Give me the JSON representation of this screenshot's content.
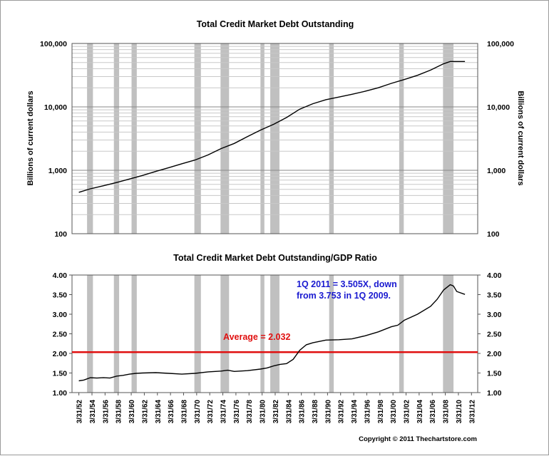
{
  "copyright": "Copyright © 2011 Thechartstore.com",
  "chart_data": [
    {
      "type": "line",
      "title": "Total Credit Market Debt Outstanding",
      "ylabel_left": "Billions of current dollars",
      "ylabel_right": "Billions of current dollars",
      "yscale": "log",
      "ylim": [
        100,
        100000
      ],
      "yticks": [
        {
          "value": 100,
          "label": "100"
        },
        {
          "value": 1000,
          "label": "1,000"
        },
        {
          "value": 10000,
          "label": "10,000"
        },
        {
          "value": 100000,
          "label": "100,000"
        }
      ],
      "grid": true,
      "line_color": "#000000",
      "recession_color": "#c0c0c0",
      "series": [
        {
          "x": [
            1952.25,
            1954,
            1956,
            1958,
            1960,
            1962,
            1964,
            1966,
            1968,
            1970,
            1972,
            1974,
            1976,
            1978,
            1980,
            1982,
            1984,
            1986,
            1988,
            1990,
            1992,
            1994,
            1996,
            1998,
            2000,
            2002,
            2004,
            2006,
            2008,
            2009,
            2010,
            2011.25
          ],
          "values": [
            450,
            510,
            570,
            640,
            730,
            830,
            960,
            1100,
            1270,
            1450,
            1750,
            2200,
            2650,
            3400,
            4300,
            5300,
            6800,
            9200,
            11200,
            13000,
            14300,
            15800,
            17600,
            20000,
            23500,
            27000,
            31500,
            38000,
            48000,
            52000,
            52000,
            52000
          ]
        }
      ]
    },
    {
      "type": "line",
      "title": "Total Credit Market Debt Outstanding/GDP Ratio",
      "ylim": [
        1.0,
        4.0
      ],
      "yticks": [
        {
          "value": 1.0,
          "label": "1.00"
        },
        {
          "value": 1.5,
          "label": "1.50"
        },
        {
          "value": 2.0,
          "label": "2.00"
        },
        {
          "value": 2.5,
          "label": "2.50"
        },
        {
          "value": 3.0,
          "label": "3.00"
        },
        {
          "value": 3.5,
          "label": "3.50"
        },
        {
          "value": 4.0,
          "label": "4.00"
        }
      ],
      "grid": false,
      "line_color": "#000000",
      "average": {
        "value": 2.032,
        "label": "Average = 2.032",
        "color": "#e01010"
      },
      "annotation": {
        "lines": [
          "1Q 2011 = 3.505X, down",
          "from 3.753 in 1Q 2009."
        ],
        "color": "#1a1ad0"
      },
      "series": [
        {
          "x": [
            1952.25,
            1953,
            1954,
            1955,
            1956,
            1957,
            1958,
            1959,
            1960,
            1961,
            1962,
            1964,
            1966,
            1968,
            1970,
            1972,
            1974,
            1975,
            1976,
            1978,
            1980,
            1981,
            1982,
            1983,
            1984,
            1985,
            1986,
            1987,
            1988,
            1990,
            1992,
            1994,
            1996,
            1998,
            2000,
            2001,
            2002,
            2004,
            2006,
            2007,
            2008,
            2009,
            2009.5,
            2010,
            2011.25
          ],
          "values": [
            1.3,
            1.32,
            1.38,
            1.37,
            1.38,
            1.37,
            1.42,
            1.44,
            1.47,
            1.49,
            1.5,
            1.51,
            1.49,
            1.47,
            1.49,
            1.53,
            1.55,
            1.57,
            1.54,
            1.56,
            1.6,
            1.63,
            1.68,
            1.72,
            1.74,
            1.85,
            2.08,
            2.22,
            2.27,
            2.34,
            2.35,
            2.37,
            2.45,
            2.55,
            2.68,
            2.72,
            2.85,
            3.0,
            3.2,
            3.38,
            3.62,
            3.753,
            3.72,
            3.58,
            3.505
          ]
        }
      ]
    }
  ],
  "recessions": [
    [
      1953.5,
      1954.4
    ],
    [
      1957.6,
      1958.4
    ],
    [
      1960.3,
      1961.1
    ],
    [
      1969.9,
      1970.9
    ],
    [
      1973.9,
      1975.2
    ],
    [
      1980.0,
      1980.6
    ],
    [
      1981.5,
      1982.9
    ],
    [
      1990.5,
      1991.2
    ],
    [
      2001.2,
      2001.9
    ],
    [
      2007.9,
      2009.5
    ]
  ],
  "x_axis": {
    "min": 1951.2,
    "max": 2013.2,
    "ticks": [
      {
        "value": 1952.25,
        "label": "3/31/52"
      },
      {
        "value": 1954.25,
        "label": "3/31/54"
      },
      {
        "value": 1956.25,
        "label": "3/31/56"
      },
      {
        "value": 1958.25,
        "label": "3/31/58"
      },
      {
        "value": 1960.25,
        "label": "3/31/60"
      },
      {
        "value": 1962.25,
        "label": "3/31/62"
      },
      {
        "value": 1964.25,
        "label": "3/31/64"
      },
      {
        "value": 1966.25,
        "label": "3/31/66"
      },
      {
        "value": 1968.25,
        "label": "3/31/68"
      },
      {
        "value": 1970.25,
        "label": "3/31/70"
      },
      {
        "value": 1972.25,
        "label": "3/31/72"
      },
      {
        "value": 1974.25,
        "label": "3/31/74"
      },
      {
        "value": 1976.25,
        "label": "3/31/76"
      },
      {
        "value": 1978.25,
        "label": "3/31/78"
      },
      {
        "value": 1980.25,
        "label": "3/31/80"
      },
      {
        "value": 1982.25,
        "label": "3/31/82"
      },
      {
        "value": 1984.25,
        "label": "3/31/84"
      },
      {
        "value": 1986.25,
        "label": "3/31/86"
      },
      {
        "value": 1988.25,
        "label": "3/31/88"
      },
      {
        "value": 1990.25,
        "label": "3/31/90"
      },
      {
        "value": 1992.25,
        "label": "3/31/92"
      },
      {
        "value": 1994.25,
        "label": "3/31/94"
      },
      {
        "value": 1996.25,
        "label": "3/31/96"
      },
      {
        "value": 1998.25,
        "label": "3/31/98"
      },
      {
        "value": 2000.25,
        "label": "3/31/00"
      },
      {
        "value": 2002.25,
        "label": "3/31/02"
      },
      {
        "value": 2004.25,
        "label": "3/31/04"
      },
      {
        "value": 2006.25,
        "label": "3/31/06"
      },
      {
        "value": 2008.25,
        "label": "3/31/08"
      },
      {
        "value": 2010.25,
        "label": "3/31/10"
      },
      {
        "value": 2012.25,
        "label": "3/31/12"
      }
    ]
  }
}
